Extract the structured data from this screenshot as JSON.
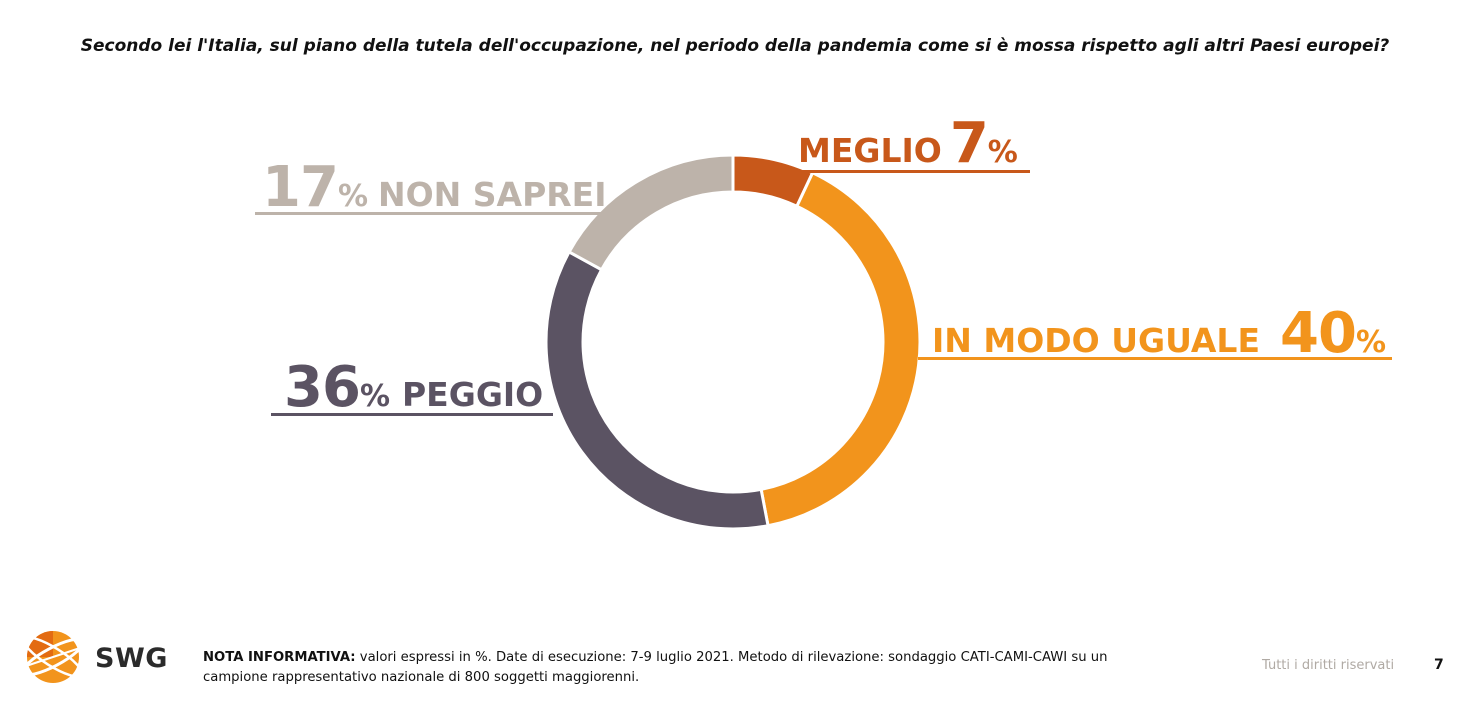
{
  "question": "Secondo lei l'Italia, sul piano della tutela dell'occupazione, nel periodo della pandemia come si è mossa rispetto agli altri Paesi europei?",
  "labels": {
    "meglio": {
      "text": "MEGLIO",
      "value": "7",
      "unit": "%"
    },
    "uguale": {
      "text": "IN MODO UGUALE",
      "value": "40",
      "unit": "%"
    },
    "peggio": {
      "value": "36",
      "unit": "%",
      "text": "PEGGIO"
    },
    "non_saprei": {
      "value": "17",
      "unit": "%",
      "text": "NON SAPREI"
    }
  },
  "chart_data": {
    "type": "pie",
    "variant": "donut",
    "categories": [
      "MEGLIO",
      "IN MODO UGUALE",
      "PEGGIO",
      "NON SAPREI"
    ],
    "values": [
      7,
      40,
      36,
      17
    ],
    "unit": "%",
    "colors": [
      "#c8581a",
      "#f2941c",
      "#5b5363",
      "#bdb3aa"
    ],
    "start": "top",
    "direction": "clockwise"
  },
  "footer": {
    "brand": "SWG",
    "note_label": "NOTA INFORMATIVA:",
    "note_text": " valori espressi in %. Date di esecuzione: 7-9 luglio 2021. Metodo di rilevazione: sondaggio CATI-CAMI-CAWI su un campione rappresentativo nazionale di 800 soggetti maggiorenni.",
    "rights": "Tutti i diritti riservati",
    "page_number": "7"
  },
  "logo": {
    "colors": [
      "#f2941c",
      "#e36b12",
      "#ffffff"
    ]
  }
}
